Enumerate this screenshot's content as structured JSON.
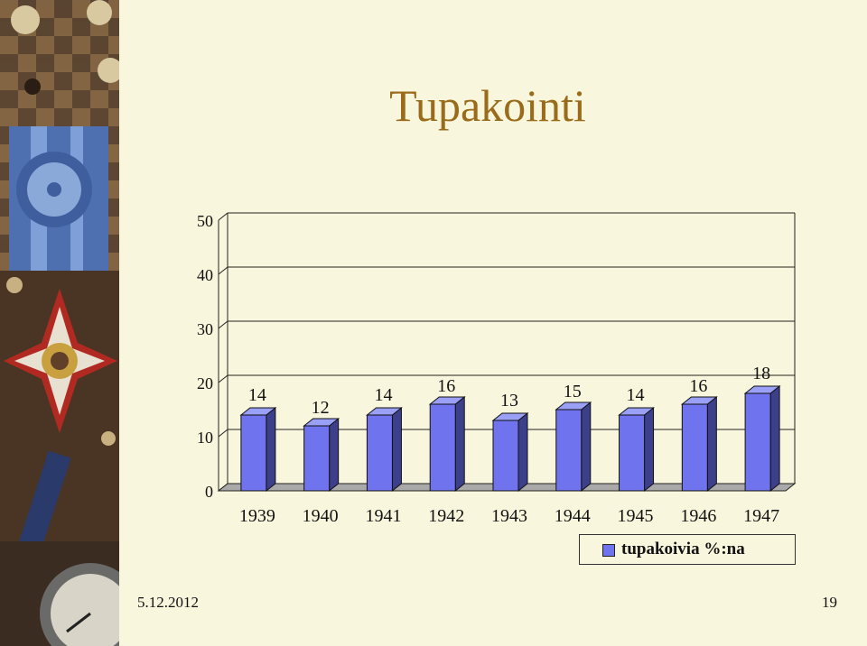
{
  "slide": {
    "title": "Tupakointi",
    "date": "5.12.2012",
    "page_number": "19"
  },
  "colors": {
    "title": "#9a6b1a",
    "background": "#f8f6dc",
    "bar_front": "#6f74ee",
    "bar_side": "#3c3f8a",
    "bar_top": "#9aa0f5"
  },
  "chart_data": {
    "type": "bar",
    "categories": [
      "1939",
      "1940",
      "1941",
      "1942",
      "1943",
      "1944",
      "1945",
      "1946",
      "1947"
    ],
    "series": [
      {
        "name": "tupakoivia %:na",
        "values": [
          14,
          12,
          14,
          16,
          13,
          15,
          14,
          16,
          18
        ]
      }
    ],
    "data_labels": [
      "14",
      "12",
      "14",
      "16",
      "13",
      "15",
      "14",
      "16",
      "18"
    ],
    "yticks": [
      "0",
      "10",
      "20",
      "30",
      "40",
      "50"
    ],
    "ylim": [
      0,
      50
    ],
    "title": "",
    "xlabel": "",
    "ylabel": "",
    "grid": true,
    "three_d": true,
    "legend": {
      "position": "bottom-right",
      "label": "tupakoivia %:na"
    }
  }
}
